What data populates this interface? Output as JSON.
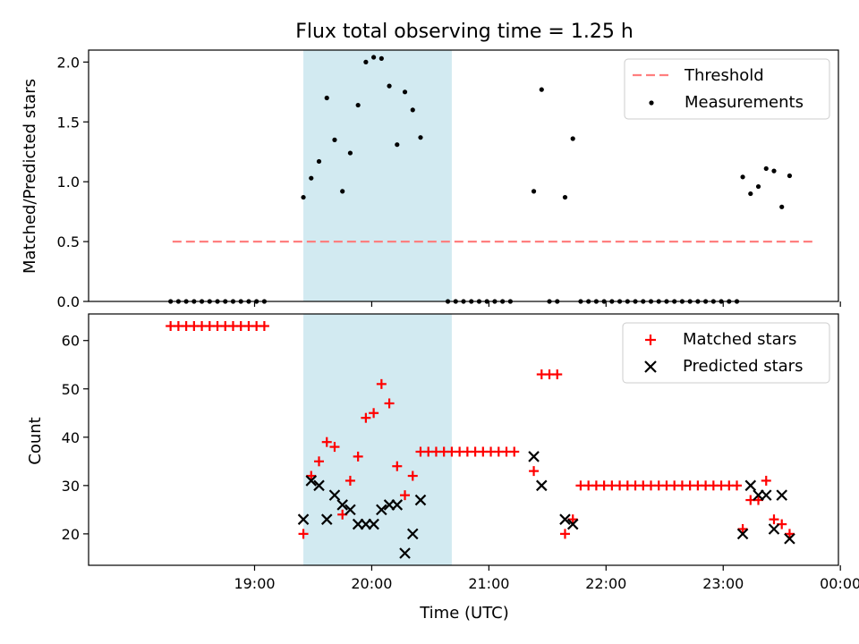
{
  "figure_title": "Flux total observing time = 1.25 h",
  "colors": {
    "threshold": "#ff7f7f",
    "highlight": "#add8e6",
    "matched": "#ff0000",
    "predicted": "#000000",
    "measurement": "#000000"
  },
  "chart_data": [
    {
      "type": "scatter",
      "ylabel": "Matched/Predicted stars",
      "x_unit": "minutes after 18:00 UTC",
      "xlim": [
        -25,
        359
      ],
      "ylim": [
        0,
        2.1
      ],
      "yticks": [
        "0.0",
        "0.5",
        "1.0",
        "1.5",
        "2.0"
      ],
      "yticks_values": [
        0,
        0.5,
        1.0,
        1.5,
        2.0
      ],
      "highlight_span": [
        85,
        161
      ],
      "threshold": {
        "y": 0.5,
        "x": [
          18,
          346
        ],
        "style": "dashed"
      },
      "legend": {
        "position": "upper right",
        "entries": [
          "Threshold",
          "Measurements"
        ]
      },
      "series": [
        {
          "name": "Measurements",
          "points": [
            [
              17,
              0
            ],
            [
              21,
              0
            ],
            [
              25,
              0
            ],
            [
              29,
              0
            ],
            [
              33,
              0
            ],
            [
              37,
              0
            ],
            [
              41,
              0
            ],
            [
              45,
              0
            ],
            [
              49,
              0
            ],
            [
              53,
              0
            ],
            [
              57,
              0
            ],
            [
              61,
              0
            ],
            [
              65,
              0
            ],
            [
              85,
              0.87
            ],
            [
              89,
              1.03
            ],
            [
              93,
              1.17
            ],
            [
              97,
              1.7
            ],
            [
              101,
              1.35
            ],
            [
              105,
              0.92
            ],
            [
              109,
              1.24
            ],
            [
              113,
              1.64
            ],
            [
              117,
              2.0
            ],
            [
              121,
              2.04
            ],
            [
              125,
              2.03
            ],
            [
              129,
              1.8
            ],
            [
              133,
              1.31
            ],
            [
              137,
              1.75
            ],
            [
              141,
              1.6
            ],
            [
              145,
              1.37
            ],
            [
              159,
              0
            ],
            [
              163,
              0
            ],
            [
              167,
              0
            ],
            [
              171,
              0
            ],
            [
              175,
              0
            ],
            [
              179,
              0
            ],
            [
              183,
              0
            ],
            [
              187,
              0
            ],
            [
              191,
              0
            ],
            [
              203,
              0.92
            ],
            [
              207,
              1.77
            ],
            [
              211,
              0
            ],
            [
              215,
              0
            ],
            [
              219,
              0.87
            ],
            [
              223,
              1.36
            ],
            [
              227,
              0
            ],
            [
              231,
              0
            ],
            [
              235,
              0
            ],
            [
              239,
              0
            ],
            [
              243,
              0
            ],
            [
              247,
              0
            ],
            [
              251,
              0
            ],
            [
              255,
              0
            ],
            [
              259,
              0
            ],
            [
              263,
              0
            ],
            [
              267,
              0
            ],
            [
              271,
              0
            ],
            [
              275,
              0
            ],
            [
              279,
              0
            ],
            [
              283,
              0
            ],
            [
              287,
              0
            ],
            [
              291,
              0
            ],
            [
              295,
              0
            ],
            [
              299,
              0
            ],
            [
              303,
              0
            ],
            [
              307,
              0
            ],
            [
              310,
              1.04
            ],
            [
              314,
              0.9
            ],
            [
              318,
              0.96
            ],
            [
              322,
              1.11
            ],
            [
              326,
              1.09
            ],
            [
              330,
              0.79
            ],
            [
              334,
              1.05
            ]
          ]
        }
      ]
    },
    {
      "type": "scatter",
      "xlabel": "Time (UTC)",
      "ylabel": "Count",
      "xlim": [
        -25,
        359
      ],
      "ylim": [
        13.5,
        65.5
      ],
      "xticks": [
        "19:00",
        "20:00",
        "21:00",
        "22:00",
        "23:00",
        "00:00"
      ],
      "xticks_values": [
        60,
        120,
        180,
        240,
        300,
        360
      ],
      "yticks": [
        "20",
        "30",
        "40",
        "50",
        "60"
      ],
      "yticks_values": [
        20,
        30,
        40,
        50,
        60
      ],
      "highlight_span": [
        85,
        161
      ],
      "legend": {
        "position": "upper right",
        "entries": [
          "Matched stars",
          "Predicted stars"
        ]
      },
      "series": [
        {
          "name": "Matched stars",
          "marker": "plus",
          "points": [
            [
              17,
              63
            ],
            [
              21,
              63
            ],
            [
              25,
              63
            ],
            [
              29,
              63
            ],
            [
              33,
              63
            ],
            [
              37,
              63
            ],
            [
              41,
              63
            ],
            [
              45,
              63
            ],
            [
              49,
              63
            ],
            [
              53,
              63
            ],
            [
              57,
              63
            ],
            [
              61,
              63
            ],
            [
              65,
              63
            ],
            [
              85,
              20
            ],
            [
              89,
              32
            ],
            [
              93,
              35
            ],
            [
              97,
              39
            ],
            [
              101,
              38
            ],
            [
              105,
              24
            ],
            [
              109,
              31
            ],
            [
              113,
              36
            ],
            [
              117,
              44
            ],
            [
              121,
              45
            ],
            [
              125,
              51
            ],
            [
              129,
              47
            ],
            [
              133,
              34
            ],
            [
              137,
              28
            ],
            [
              141,
              32
            ],
            [
              145,
              37
            ],
            [
              149,
              37
            ],
            [
              153,
              37
            ],
            [
              157,
              37
            ],
            [
              161,
              37
            ],
            [
              165,
              37
            ],
            [
              169,
              37
            ],
            [
              173,
              37
            ],
            [
              177,
              37
            ],
            [
              181,
              37
            ],
            [
              185,
              37
            ],
            [
              189,
              37
            ],
            [
              193,
              37
            ],
            [
              203,
              33
            ],
            [
              207,
              53
            ],
            [
              211,
              53
            ],
            [
              215,
              53
            ],
            [
              219,
              20
            ],
            [
              223,
              23
            ],
            [
              227,
              30
            ],
            [
              231,
              30
            ],
            [
              235,
              30
            ],
            [
              239,
              30
            ],
            [
              243,
              30
            ],
            [
              247,
              30
            ],
            [
              251,
              30
            ],
            [
              255,
              30
            ],
            [
              259,
              30
            ],
            [
              263,
              30
            ],
            [
              267,
              30
            ],
            [
              271,
              30
            ],
            [
              275,
              30
            ],
            [
              279,
              30
            ],
            [
              283,
              30
            ],
            [
              287,
              30
            ],
            [
              291,
              30
            ],
            [
              295,
              30
            ],
            [
              299,
              30
            ],
            [
              303,
              30
            ],
            [
              307,
              30
            ],
            [
              310,
              21
            ],
            [
              314,
              27
            ],
            [
              318,
              27
            ],
            [
              322,
              31
            ],
            [
              326,
              23
            ],
            [
              330,
              22
            ],
            [
              334,
              20
            ]
          ]
        },
        {
          "name": "Predicted stars",
          "marker": "x",
          "points": [
            [
              85,
              23
            ],
            [
              89,
              31
            ],
            [
              93,
              30
            ],
            [
              97,
              23
            ],
            [
              101,
              28
            ],
            [
              105,
              26
            ],
            [
              109,
              25
            ],
            [
              113,
              22
            ],
            [
              117,
              22
            ],
            [
              121,
              22
            ],
            [
              125,
              25
            ],
            [
              129,
              26
            ],
            [
              133,
              26
            ],
            [
              137,
              16
            ],
            [
              141,
              20
            ],
            [
              145,
              27
            ],
            [
              203,
              36
            ],
            [
              207,
              30
            ],
            [
              219,
              23
            ],
            [
              223,
              22
            ],
            [
              310,
              20
            ],
            [
              314,
              30
            ],
            [
              318,
              28
            ],
            [
              322,
              28
            ],
            [
              326,
              21
            ],
            [
              330,
              28
            ],
            [
              334,
              19
            ]
          ]
        }
      ]
    }
  ]
}
